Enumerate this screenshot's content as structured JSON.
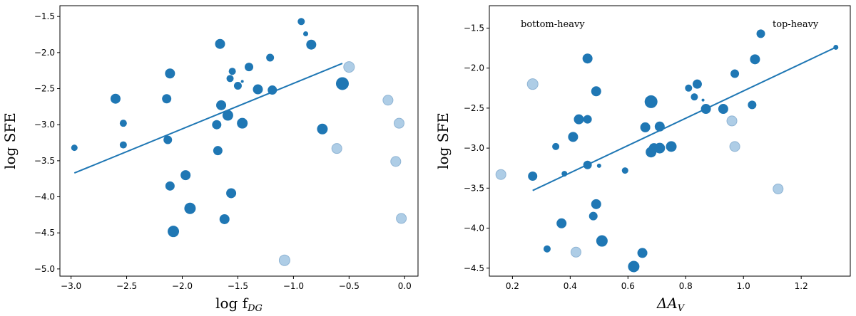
{
  "colors": {
    "dark": "#1f77b4",
    "light": "#aecde6",
    "light_edge": "#8fb4d4",
    "fit": "#1f77b4"
  },
  "chart_data": [
    {
      "type": "scatter",
      "xlabel_main": "log f",
      "xlabel_sub": "DG",
      "ylabel": "log SFE",
      "xlim": [
        -3.1,
        0.12
      ],
      "ylim": [
        -5.1,
        -1.35
      ],
      "xticks": [
        -3.0,
        -2.5,
        -2.0,
        -1.5,
        -1.0,
        -0.5,
        0.0
      ],
      "xtick_labels": [
        "−3.0",
        "−2.5",
        "−2.0",
        "−1.5",
        "−1.0",
        "−0.5",
        "0.0"
      ],
      "yticks": [
        -1.5,
        -2.0,
        -2.5,
        -3.0,
        -3.5,
        -4.0,
        -4.5,
        -5.0
      ],
      "ytick_labels": [
        "−1.5",
        "−2.0",
        "−2.5",
        "−3.0",
        "−3.5",
        "−4.0",
        "−4.5",
        "−5.0"
      ],
      "fit_line": {
        "x": [
          -2.97,
          -0.56
        ],
        "y": [
          -3.67,
          -2.15
        ]
      },
      "points": [
        {
          "x": -2.97,
          "y": -3.32,
          "s": 4.5,
          "light": false
        },
        {
          "x": -2.6,
          "y": -2.64,
          "s": 7,
          "light": false
        },
        {
          "x": -2.53,
          "y": -2.98,
          "s": 5,
          "light": false
        },
        {
          "x": -2.53,
          "y": -3.28,
          "s": 5,
          "light": false
        },
        {
          "x": -2.14,
          "y": -2.64,
          "s": 6.5,
          "light": false
        },
        {
          "x": -2.13,
          "y": -3.21,
          "s": 6,
          "light": false
        },
        {
          "x": -2.11,
          "y": -2.29,
          "s": 7,
          "light": false
        },
        {
          "x": -2.11,
          "y": -3.85,
          "s": 6.5,
          "light": false
        },
        {
          "x": -2.08,
          "y": -4.48,
          "s": 8,
          "light": false
        },
        {
          "x": -1.97,
          "y": -3.7,
          "s": 7,
          "light": false
        },
        {
          "x": -1.93,
          "y": -4.16,
          "s": 8,
          "light": false
        },
        {
          "x": -1.69,
          "y": -3.0,
          "s": 6.5,
          "light": false
        },
        {
          "x": -1.68,
          "y": -3.36,
          "s": 6.5,
          "light": false
        },
        {
          "x": -1.66,
          "y": -1.88,
          "s": 7,
          "light": false
        },
        {
          "x": -1.65,
          "y": -2.73,
          "s": 7,
          "light": false
        },
        {
          "x": -1.62,
          "y": -4.31,
          "s": 7,
          "light": false
        },
        {
          "x": -1.59,
          "y": -2.87,
          "s": 7.5,
          "light": false
        },
        {
          "x": -1.57,
          "y": -2.36,
          "s": 5,
          "light": false
        },
        {
          "x": -1.56,
          "y": -3.95,
          "s": 7,
          "light": false
        },
        {
          "x": -1.55,
          "y": -2.26,
          "s": 5,
          "light": false
        },
        {
          "x": -1.5,
          "y": -2.46,
          "s": 5.5,
          "light": false
        },
        {
          "x": -1.46,
          "y": -2.4,
          "s": 2,
          "light": false
        },
        {
          "x": -1.46,
          "y": -2.98,
          "s": 7.5,
          "light": false
        },
        {
          "x": -1.4,
          "y": -2.2,
          "s": 6,
          "light": false
        },
        {
          "x": -1.32,
          "y": -2.51,
          "s": 7,
          "light": false
        },
        {
          "x": -1.21,
          "y": -2.07,
          "s": 5.5,
          "light": false
        },
        {
          "x": -1.19,
          "y": -2.52,
          "s": 6.5,
          "light": false
        },
        {
          "x": -1.08,
          "y": -4.88,
          "s": 7.5,
          "light": true
        },
        {
          "x": -0.93,
          "y": -1.57,
          "s": 5,
          "light": false
        },
        {
          "x": -0.89,
          "y": -1.74,
          "s": 3.5,
          "light": false
        },
        {
          "x": -0.84,
          "y": -1.89,
          "s": 7,
          "light": false
        },
        {
          "x": -0.74,
          "y": -3.06,
          "s": 7.5,
          "light": false
        },
        {
          "x": -0.61,
          "y": -3.33,
          "s": 7,
          "light": true
        },
        {
          "x": -0.56,
          "y": -2.43,
          "s": 9,
          "light": false
        },
        {
          "x": -0.5,
          "y": -2.2,
          "s": 7.5,
          "light": true
        },
        {
          "x": -0.15,
          "y": -2.66,
          "s": 7,
          "light": true
        },
        {
          "x": -0.08,
          "y": -3.51,
          "s": 7,
          "light": true
        },
        {
          "x": -0.05,
          "y": -2.98,
          "s": 7,
          "light": true
        },
        {
          "x": -0.03,
          "y": -4.3,
          "s": 7,
          "light": true
        }
      ]
    },
    {
      "type": "scatter",
      "xlabel_main": "ΔA",
      "xlabel_sub": "V",
      "ylabel": "log SFE",
      "xlim": [
        0.12,
        1.37
      ],
      "ylim": [
        -4.6,
        -1.22
      ],
      "xticks": [
        0.2,
        0.4,
        0.6,
        0.8,
        1.0,
        1.2
      ],
      "xtick_labels": [
        "0.2",
        "0.4",
        "0.6",
        "0.8",
        "1.0",
        "1.2"
      ],
      "yticks": [
        -1.5,
        -2.0,
        -2.5,
        -3.0,
        -3.5,
        -4.0,
        -4.5
      ],
      "ytick_labels": [
        "−1.5",
        "−2.0",
        "−2.5",
        "−3.0",
        "−3.5",
        "−4.0",
        "−4.5"
      ],
      "annotations": [
        "bottom-heavy",
        "top-heavy"
      ],
      "fit_line": {
        "x": [
          0.27,
          1.32
        ],
        "y": [
          -3.53,
          -1.74
        ]
      },
      "points": [
        {
          "x": 0.16,
          "y": -3.33,
          "s": 7,
          "light": true
        },
        {
          "x": 0.27,
          "y": -2.2,
          "s": 7.5,
          "light": true
        },
        {
          "x": 0.27,
          "y": -3.35,
          "s": 6.5,
          "light": false
        },
        {
          "x": 0.32,
          "y": -4.26,
          "s": 5,
          "light": false
        },
        {
          "x": 0.35,
          "y": -2.98,
          "s": 5,
          "light": false
        },
        {
          "x": 0.37,
          "y": -3.94,
          "s": 7,
          "light": false
        },
        {
          "x": 0.38,
          "y": -3.32,
          "s": 4,
          "light": false
        },
        {
          "x": 0.41,
          "y": -2.86,
          "s": 7,
          "light": false
        },
        {
          "x": 0.42,
          "y": -4.3,
          "s": 7,
          "light": true
        },
        {
          "x": 0.43,
          "y": -2.64,
          "s": 7,
          "light": false
        },
        {
          "x": 0.46,
          "y": -1.88,
          "s": 7,
          "light": false
        },
        {
          "x": 0.46,
          "y": -2.64,
          "s": 6,
          "light": false
        },
        {
          "x": 0.46,
          "y": -3.21,
          "s": 6,
          "light": false
        },
        {
          "x": 0.48,
          "y": -3.85,
          "s": 6,
          "light": false
        },
        {
          "x": 0.49,
          "y": -2.29,
          "s": 7,
          "light": false
        },
        {
          "x": 0.49,
          "y": -3.7,
          "s": 7,
          "light": false
        },
        {
          "x": 0.5,
          "y": -3.22,
          "s": 3,
          "light": false
        },
        {
          "x": 0.51,
          "y": -4.16,
          "s": 8,
          "light": false
        },
        {
          "x": 0.59,
          "y": -3.28,
          "s": 4.5,
          "light": false
        },
        {
          "x": 0.62,
          "y": -4.48,
          "s": 8,
          "light": false
        },
        {
          "x": 0.65,
          "y": -4.31,
          "s": 7,
          "light": false
        },
        {
          "x": 0.66,
          "y": -2.74,
          "s": 7,
          "light": false
        },
        {
          "x": 0.68,
          "y": -2.42,
          "s": 9,
          "light": false
        },
        {
          "x": 0.68,
          "y": -3.05,
          "s": 7.5,
          "light": false
        },
        {
          "x": 0.69,
          "y": -3.0,
          "s": 7,
          "light": false
        },
        {
          "x": 0.71,
          "y": -2.73,
          "s": 7,
          "light": false
        },
        {
          "x": 0.71,
          "y": -3.0,
          "s": 7.5,
          "light": false
        },
        {
          "x": 0.75,
          "y": -2.98,
          "s": 7.5,
          "light": false
        },
        {
          "x": 0.81,
          "y": -2.25,
          "s": 5,
          "light": false
        },
        {
          "x": 0.83,
          "y": -2.36,
          "s": 5,
          "light": false
        },
        {
          "x": 0.84,
          "y": -2.2,
          "s": 6.5,
          "light": false
        },
        {
          "x": 0.86,
          "y": -2.4,
          "s": 2,
          "light": false
        },
        {
          "x": 0.87,
          "y": -2.51,
          "s": 7,
          "light": false
        },
        {
          "x": 0.93,
          "y": -2.51,
          "s": 7,
          "light": false
        },
        {
          "x": 0.96,
          "y": -2.66,
          "s": 7,
          "light": true
        },
        {
          "x": 0.97,
          "y": -2.07,
          "s": 6,
          "light": false
        },
        {
          "x": 0.97,
          "y": -2.98,
          "s": 7,
          "light": true
        },
        {
          "x": 1.03,
          "y": -2.46,
          "s": 6,
          "light": false
        },
        {
          "x": 1.04,
          "y": -1.89,
          "s": 7,
          "light": false
        },
        {
          "x": 1.06,
          "y": -1.57,
          "s": 6,
          "light": false
        },
        {
          "x": 1.12,
          "y": -3.51,
          "s": 7,
          "light": true
        },
        {
          "x": 1.32,
          "y": -1.74,
          "s": 3.5,
          "light": false
        }
      ]
    }
  ]
}
